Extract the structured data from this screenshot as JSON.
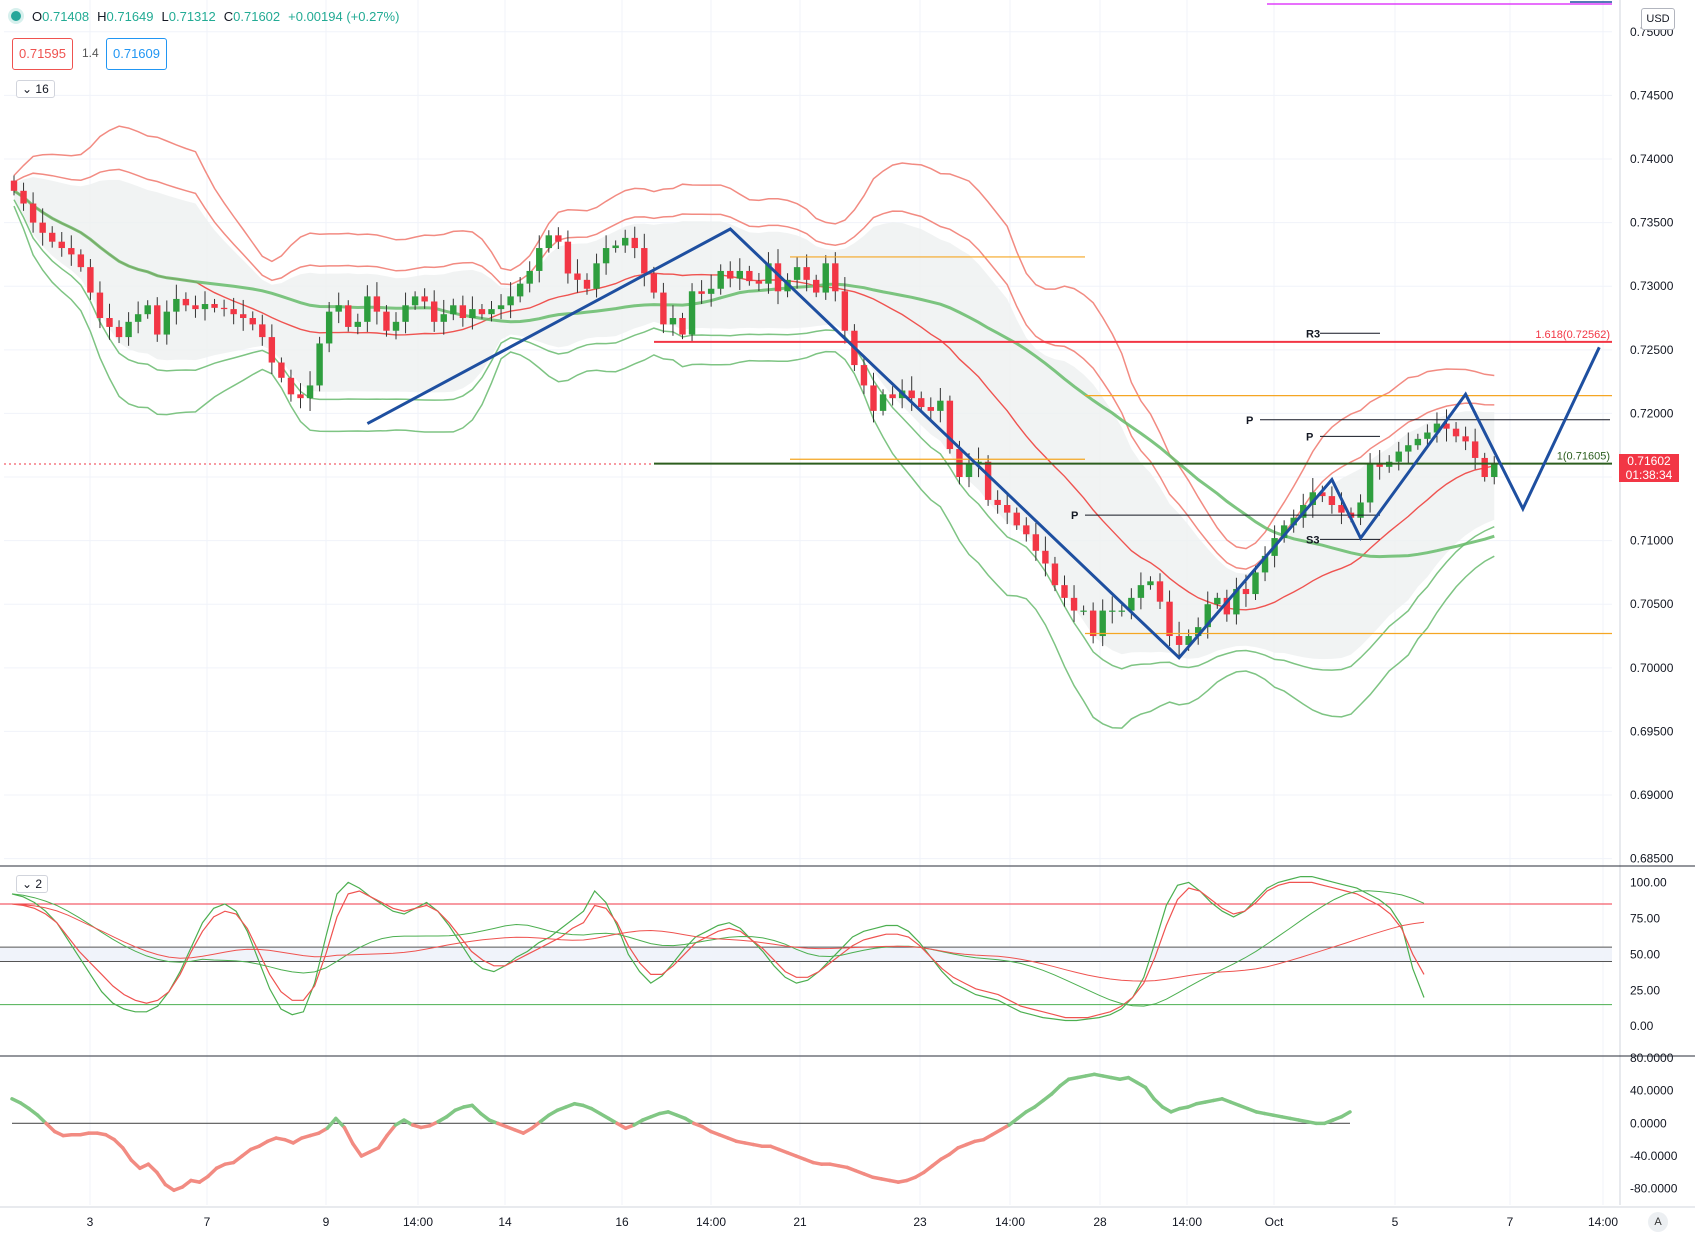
{
  "ohlc": {
    "open_label": "O",
    "open": "0.71408",
    "high_label": "H",
    "high": "0.71649",
    "low_label": "L",
    "low": "0.71312",
    "close_label": "C",
    "close": "0.71602",
    "change": "+0.00194 (+0.27%)"
  },
  "bid": "0.71595",
  "spread": "1.4",
  "ask": "0.71609",
  "indicator_buttons": [
    "16",
    "2"
  ],
  "currency": "USD",
  "last_price": "0.71602",
  "countdown": "01:38:34",
  "corner_label": "A",
  "colors": {
    "up": "#2e9e3e",
    "down": "#f23645",
    "zigzag": "#1e4fa0",
    "bb_upper": "#f28b82",
    "bb_lower": "#7ec483",
    "ma_fast": "#ef5350",
    "ma_slow": "#66bb6a"
  },
  "chart_data": [
    {
      "type": "candlestick",
      "ylim": [
        0.6845,
        0.7525
      ],
      "y_ticks": [
        "0.75000",
        "0.74500",
        "0.74000",
        "0.73500",
        "0.73000",
        "0.72500",
        "0.72000",
        "0.71500",
        "0.71000",
        "0.70500",
        "0.70000",
        "0.69500",
        "0.69000",
        "0.68500"
      ],
      "x_ticks": [
        "3",
        "7",
        "9",
        "14:00",
        "14",
        "16",
        "14:00",
        "21",
        "23",
        "14:00",
        "28",
        "14:00",
        "Oct",
        "5",
        "7",
        "14:00"
      ],
      "closes": [
        0.7375,
        0.7365,
        0.735,
        0.7342,
        0.7335,
        0.733,
        0.7325,
        0.7315,
        0.7295,
        0.7275,
        0.7268,
        0.726,
        0.7272,
        0.7278,
        0.7285,
        0.7262,
        0.728,
        0.729,
        0.7285,
        0.7282,
        0.7286,
        0.7283,
        0.7282,
        0.7278,
        0.7275,
        0.727,
        0.726,
        0.724,
        0.7228,
        0.7215,
        0.7212,
        0.7222,
        0.7255,
        0.728,
        0.7285,
        0.7268,
        0.7272,
        0.7292,
        0.728,
        0.7265,
        0.7272,
        0.7285,
        0.7292,
        0.7288,
        0.7272,
        0.7278,
        0.7285,
        0.7275,
        0.7282,
        0.7278,
        0.7282,
        0.7285,
        0.7292,
        0.7302,
        0.7312,
        0.733,
        0.734,
        0.7335,
        0.731,
        0.7305,
        0.7298,
        0.7318,
        0.733,
        0.7332,
        0.7338,
        0.733,
        0.731,
        0.7295,
        0.727,
        0.7275,
        0.7262,
        0.7296,
        0.7294,
        0.7298,
        0.7312,
        0.7306,
        0.7312,
        0.7304,
        0.7302,
        0.7318,
        0.7296,
        0.7305,
        0.7315,
        0.7305,
        0.7295,
        0.7318,
        0.7296,
        0.7265,
        0.7238,
        0.7222,
        0.7202,
        0.7215,
        0.7212,
        0.7218,
        0.7212,
        0.7205,
        0.7202,
        0.721,
        0.7172,
        0.715,
        0.716,
        0.7162,
        0.7132,
        0.7128,
        0.7122,
        0.7112,
        0.7105,
        0.7092,
        0.7082,
        0.7065,
        0.7055,
        0.7045,
        0.7045,
        0.7025,
        0.7045,
        0.7045,
        0.7045,
        0.7055,
        0.7065,
        0.7068,
        0.7052,
        0.7025,
        0.7018,
        0.7025,
        0.7032,
        0.705,
        0.7055,
        0.7042,
        0.7062,
        0.7058,
        0.7075,
        0.7088,
        0.7102,
        0.7112,
        0.7118,
        0.7128,
        0.7138,
        0.7135,
        0.7128,
        0.7122,
        0.7118,
        0.713,
        0.716,
        0.7158,
        0.7162,
        0.717,
        0.7175,
        0.718,
        0.7185,
        0.7192,
        0.7188,
        0.7182,
        0.7178,
        0.7165,
        0.715,
        0.716
      ],
      "zigzag": [
        {
          "bar": 37,
          "price": 0.7192
        },
        {
          "bar": 75,
          "price": 0.7345
        },
        {
          "bar": 122,
          "price": 0.7008
        },
        {
          "bar": 138,
          "price": 0.7148
        },
        {
          "bar": 141,
          "price": 0.7102
        },
        {
          "bar": 152,
          "price": 0.7215
        },
        {
          "bar": 158,
          "price": 0.7125
        },
        {
          "bar": 166,
          "price": 0.7252
        }
      ],
      "pivots": [
        {
          "label": "R3",
          "price": 0.7263
        },
        {
          "label": "P",
          "price": 0.7195
        },
        {
          "label": "P",
          "price": 0.7182
        },
        {
          "label": "P",
          "price": 0.712
        },
        {
          "label": "S3",
          "price": 0.7101
        }
      ],
      "fib_levels": [
        {
          "label": "1.618(0.72562)",
          "price": 0.72562
        },
        {
          "label": "1(0.71605)",
          "price": 0.71605
        }
      ]
    },
    {
      "type": "line",
      "name": "stochastic",
      "ylim": [
        -20,
        110
      ],
      "y_ticks": [
        "100.00",
        "75.00",
        "50.00",
        "25.00",
        "0.00"
      ],
      "levels": [
        85,
        55,
        45,
        15
      ],
      "k": [
        92,
        90,
        86,
        80,
        72,
        60,
        48,
        36,
        24,
        16,
        12,
        10,
        10,
        14,
        24,
        38,
        55,
        72,
        82,
        85,
        80,
        66,
        46,
        26,
        12,
        8,
        10,
        30,
        62,
        92,
        100,
        96,
        90,
        85,
        80,
        78,
        82,
        86,
        80,
        70,
        58,
        46,
        40,
        38,
        42,
        48,
        52,
        58,
        62,
        68,
        74,
        80,
        94,
        86,
        70,
        50,
        38,
        30,
        35,
        44,
        54,
        62,
        66,
        70,
        72,
        68,
        60,
        52,
        42,
        34,
        30,
        32,
        38,
        46,
        54,
        62,
        66,
        68,
        70,
        70,
        66,
        58,
        48,
        38,
        30,
        26,
        22,
        20,
        18,
        14,
        10,
        8,
        6,
        5,
        4,
        4,
        5,
        6,
        8,
        12,
        20,
        34,
        58,
        84,
        98,
        100,
        94,
        86,
        80,
        76,
        80,
        88,
        96,
        100,
        102,
        104,
        104,
        102,
        100,
        98,
        96,
        92,
        88,
        82,
        70,
        40,
        20
      ],
      "d": [
        85,
        84,
        82,
        78,
        72,
        62,
        52,
        44,
        36,
        28,
        22,
        18,
        16,
        18,
        24,
        36,
        52,
        66,
        76,
        80,
        78,
        68,
        52,
        36,
        24,
        18,
        18,
        28,
        50,
        76,
        92,
        94,
        90,
        86,
        82,
        80,
        82,
        84,
        80,
        72,
        62,
        52,
        46,
        42,
        42,
        46,
        50,
        54,
        58,
        62,
        68,
        72,
        84,
        82,
        72,
        56,
        44,
        36,
        36,
        42,
        50,
        58,
        62,
        66,
        68,
        66,
        60,
        54,
        46,
        38,
        34,
        34,
        38,
        44,
        50,
        56,
        60,
        62,
        64,
        64,
        62,
        56,
        48,
        40,
        34,
        30,
        26,
        24,
        22,
        18,
        14,
        12,
        10,
        8,
        6,
        6,
        6,
        8,
        10,
        14,
        20,
        30,
        48,
        70,
        88,
        96,
        94,
        88,
        82,
        78,
        80,
        86,
        94,
        98,
        100,
        100,
        100,
        98,
        96,
        94,
        92,
        88,
        84,
        78,
        68,
        50,
        36
      ]
    },
    {
      "type": "line",
      "name": "oscillator",
      "ylim": [
        -100,
        80
      ],
      "y_ticks": [
        "80.0000",
        "40.0000",
        "0.0000",
        "-40.0000",
        "-80.0000"
      ],
      "values": [
        30,
        25,
        18,
        10,
        0,
        -10,
        -15,
        -14,
        -14,
        -12,
        -12,
        -14,
        -20,
        -30,
        -45,
        -55,
        -50,
        -60,
        -75,
        -82,
        -78,
        -70,
        -72,
        -65,
        -55,
        -50,
        -48,
        -40,
        -32,
        -28,
        -22,
        -18,
        -20,
        -24,
        -18,
        -15,
        -12,
        -6,
        6,
        -5,
        -25,
        -40,
        -35,
        -30,
        -15,
        -2,
        4,
        -2,
        -5,
        -3,
        2,
        8,
        16,
        20,
        22,
        12,
        4,
        0,
        -4,
        -8,
        -12,
        -6,
        2,
        10,
        16,
        20,
        24,
        22,
        18,
        12,
        6,
        0,
        -6,
        -2,
        4,
        8,
        12,
        14,
        10,
        6,
        0,
        -4,
        -10,
        -14,
        -18,
        -22,
        -24,
        -26,
        -28,
        -28,
        -32,
        -36,
        -40,
        -44,
        -48,
        -50,
        -50,
        -52,
        -54,
        -58,
        -62,
        -66,
        -68,
        -70,
        -72,
        -70,
        -66,
        -60,
        -52,
        -44,
        -38,
        -30,
        -26,
        -22,
        -20,
        -14,
        -8,
        -2,
        6,
        14,
        20,
        28,
        36,
        46,
        54,
        56,
        58,
        60,
        58,
        56,
        54,
        56,
        50,
        44,
        30,
        20,
        14,
        18,
        20,
        24,
        26,
        28,
        30,
        26,
        22,
        18,
        14,
        12,
        10,
        8,
        6,
        4,
        2,
        0,
        0,
        4,
        8,
        14
      ]
    }
  ]
}
